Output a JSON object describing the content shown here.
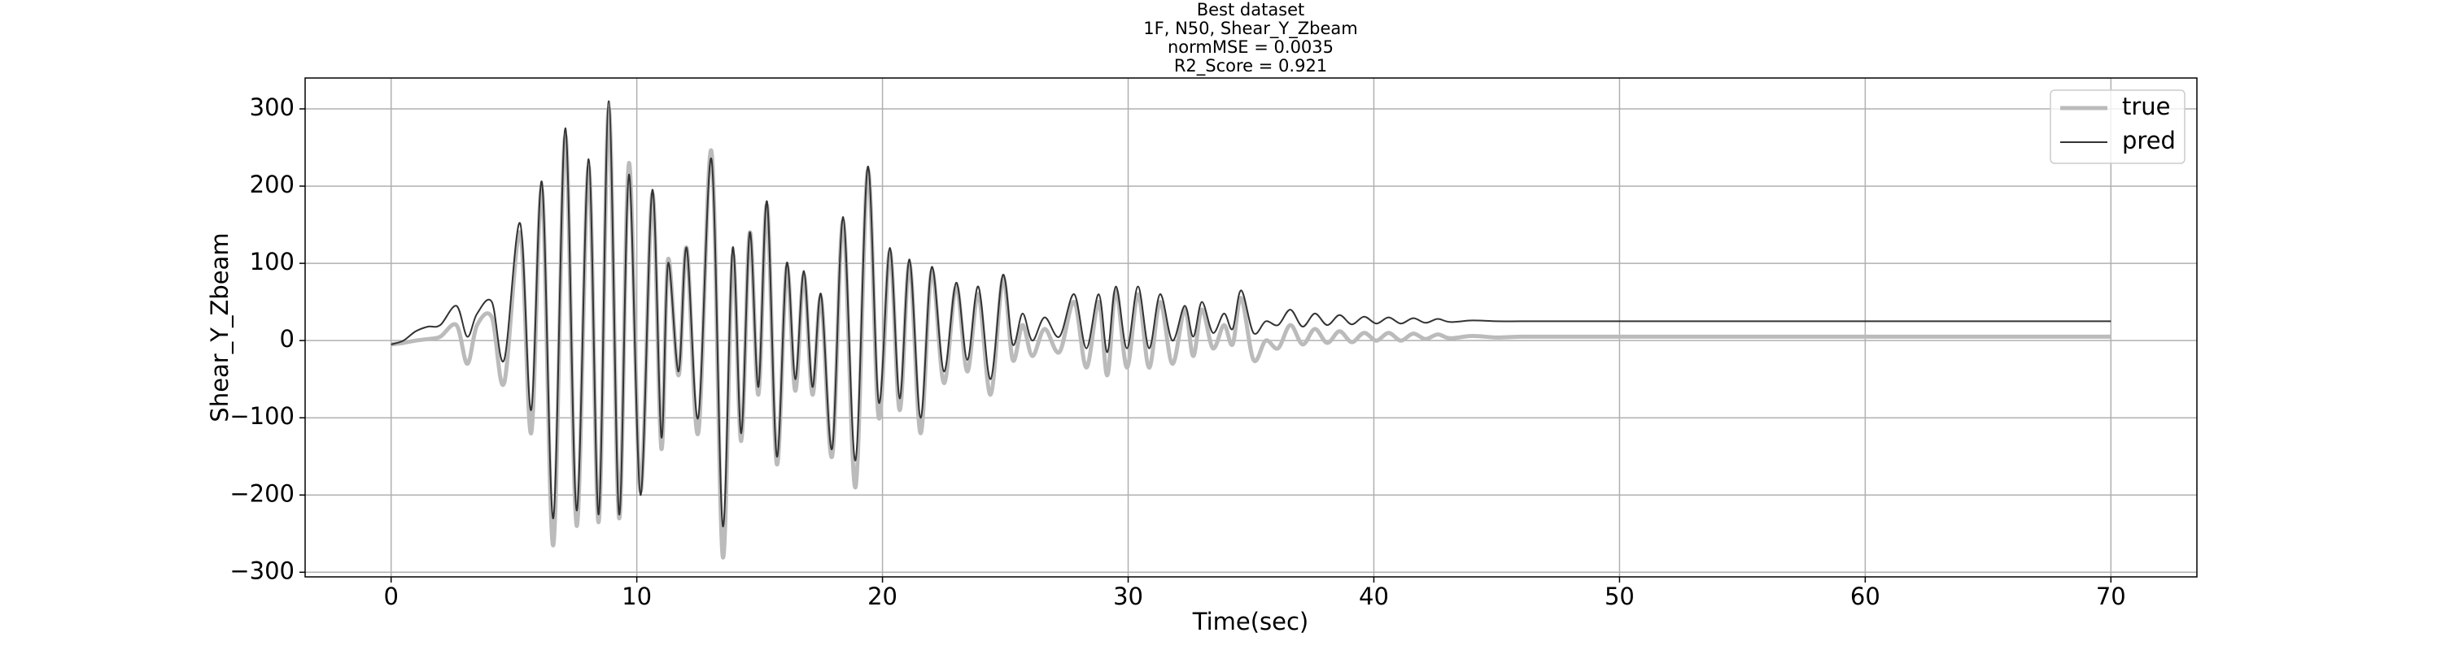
{
  "chart_data": {
    "type": "line",
    "title": [
      "Best dataset",
      "1F, N50, Shear_Y_Zbeam",
      "normMSE = 0.0035",
      "R2_Score = 0.921"
    ],
    "x_label": "Time(sec)",
    "y_label": "Shear_Y_Zbeam",
    "x": [
      0,
      0.5,
      1,
      1.5,
      2,
      2.66,
      3.1,
      3.5,
      4.1,
      4.6,
      5.25,
      5.7,
      6.14,
      6.6,
      7.09,
      7.55,
      8.04,
      8.45,
      8.86,
      9.28,
      9.68,
      10.15,
      10.63,
      11.0,
      11.27,
      11.7,
      12.03,
      12.5,
      13.04,
      13.5,
      13.9,
      14.25,
      14.6,
      14.95,
      15.3,
      15.7,
      16.1,
      16.45,
      16.8,
      17.15,
      17.5,
      17.95,
      18.4,
      18.9,
      19.4,
      19.85,
      20.3,
      20.7,
      21.1,
      21.55,
      22.0,
      22.5,
      23.0,
      23.45,
      23.9,
      24.4,
      24.9,
      25.3,
      25.7,
      26.1,
      26.6,
      27.2,
      27.8,
      28.3,
      28.8,
      29.15,
      29.5,
      29.95,
      30.4,
      30.85,
      31.3,
      31.8,
      32.3,
      32.65,
      33.0,
      33.45,
      33.9,
      34.25,
      34.6,
      35.1,
      35.6,
      36.1,
      36.6,
      37.1,
      37.6,
      38.1,
      38.6,
      39.1,
      39.6,
      40.1,
      40.6,
      41.1,
      41.6,
      42.1,
      42.6,
      43.1,
      44,
      45,
      46,
      48,
      50,
      55,
      60,
      65,
      70
    ],
    "series": [
      {
        "name": "true",
        "color": "#bbbbbb",
        "width": 5,
        "values": [
          -5,
          -3,
          0,
          2,
          5,
          20,
          -30,
          20,
          30,
          -55,
          140,
          -120,
          195,
          -265,
          265,
          -240,
          225,
          -235,
          300,
          -230,
          230,
          -195,
          190,
          -140,
          105,
          -45,
          120,
          -120,
          245,
          -280,
          110,
          -130,
          140,
          -70,
          175,
          -160,
          95,
          -65,
          85,
          -70,
          55,
          -150,
          155,
          -190,
          220,
          -100,
          115,
          -90,
          100,
          -120,
          90,
          -55,
          70,
          -40,
          60,
          -70,
          80,
          -25,
          20,
          -20,
          15,
          -15,
          50,
          -35,
          50,
          -45,
          65,
          -35,
          60,
          -35,
          50,
          -30,
          40,
          -20,
          40,
          -10,
          20,
          -5,
          55,
          -25,
          0,
          -10,
          20,
          -5,
          15,
          -3,
          12,
          -2,
          10,
          0,
          10,
          0,
          9,
          2,
          8,
          3,
          6,
          4,
          5,
          5,
          5,
          5,
          5,
          5,
          5
        ]
      },
      {
        "name": "pred",
        "color": "#333333",
        "width": 2,
        "values": [
          -5,
          0,
          12,
          18,
          20,
          45,
          5,
          35,
          50,
          -25,
          152,
          -90,
          205,
          -230,
          275,
          -220,
          235,
          -225,
          310,
          -225,
          215,
          -200,
          195,
          -125,
          100,
          -40,
          120,
          -100,
          235,
          -240,
          120,
          -120,
          140,
          -60,
          180,
          -150,
          100,
          -50,
          90,
          -60,
          60,
          -140,
          160,
          -155,
          225,
          -80,
          120,
          -75,
          105,
          -100,
          95,
          -40,
          75,
          -25,
          70,
          -50,
          85,
          -5,
          35,
          0,
          30,
          5,
          60,
          -10,
          60,
          -15,
          70,
          -10,
          70,
          -10,
          60,
          0,
          45,
          5,
          50,
          10,
          35,
          15,
          65,
          10,
          25,
          20,
          40,
          18,
          35,
          20,
          33,
          21,
          31,
          22,
          30,
          22,
          29,
          23,
          28,
          24,
          26,
          25,
          25,
          25,
          25,
          25,
          25,
          25,
          25
        ]
      }
    ],
    "xlim": [
      -3.5,
      73.5
    ],
    "xticks": [
      0,
      10,
      20,
      30,
      40,
      50,
      60,
      70
    ],
    "ylim": [
      -306,
      340
    ],
    "yticks": [
      {
        "value": -300,
        "label": "−300"
      },
      {
        "value": -200,
        "label": "−200"
      },
      {
        "value": -100,
        "label": "−100"
      },
      0,
      100,
      200,
      300
    ],
    "grid": true,
    "legend": "upper right"
  }
}
